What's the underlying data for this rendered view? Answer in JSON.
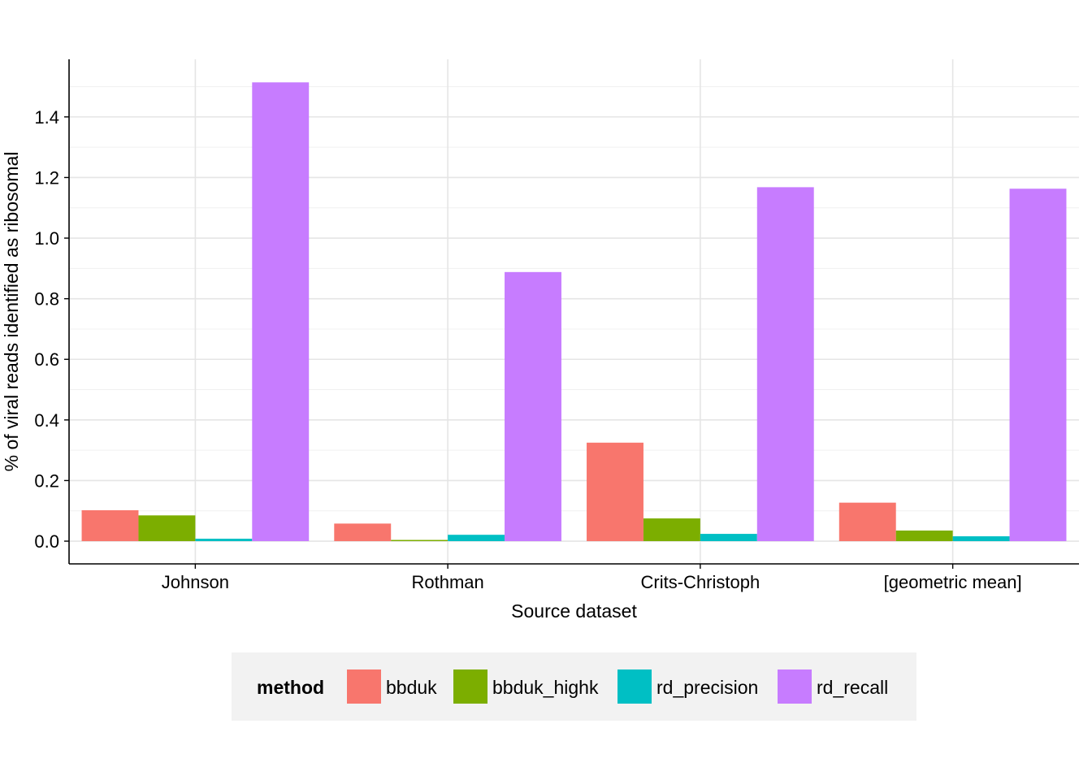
{
  "chart_data": {
    "type": "bar",
    "xlabel": "Source dataset",
    "ylabel": "% of viral reads identified as ribosomal",
    "categories": [
      "Johnson",
      "Rothman",
      "Crits-Christoph",
      "[geometric mean]"
    ],
    "series": [
      {
        "name": "bbduk",
        "color": "#F8766D",
        "values": [
          0.102,
          0.058,
          0.325,
          0.127
        ]
      },
      {
        "name": "bbduk_highk",
        "color": "#7CAE00",
        "values": [
          0.085,
          0.004,
          0.075,
          0.035
        ]
      },
      {
        "name": "rd_precision",
        "color": "#00BFC4",
        "values": [
          0.008,
          0.021,
          0.024,
          0.016
        ]
      },
      {
        "name": "rd_recall",
        "color": "#C77CFF",
        "values": [
          1.514,
          0.888,
          1.168,
          1.163
        ]
      }
    ],
    "ylim": [
      -0.075,
      1.59
    ],
    "yticks": [
      "0.0",
      "0.2",
      "0.4",
      "0.6",
      "0.8",
      "1.0",
      "1.2",
      "1.4"
    ],
    "grid": true,
    "legend": {
      "title": "method",
      "position": "bottom"
    }
  }
}
